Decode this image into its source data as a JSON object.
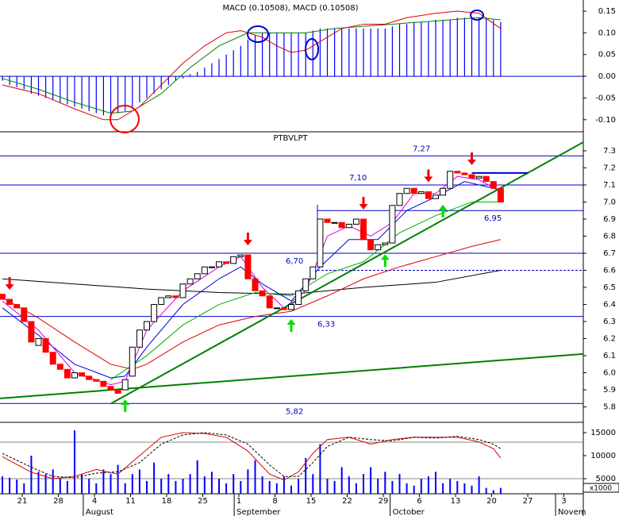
{
  "chart_data": [
    {
      "type": "macd",
      "title": "MACD (0.10508), MACD (0.10508)",
      "xlim": [
        -0.33,
        80.44
      ],
      "ylim": [
        -0.126,
        0.172
      ],
      "yticks": [
        {
          "value": -0.1,
          "label": "-0.10"
        },
        -0.05,
        {
          "value": 0,
          "label": "0.00"
        },
        0.05,
        {
          "value": 0.1,
          "label": "0.10"
        },
        0.15
      ],
      "x": [
        0,
        1,
        2,
        3,
        4,
        5,
        6,
        7,
        8,
        9,
        10,
        11,
        12,
        13,
        14,
        15,
        16,
        17,
        18,
        19,
        20,
        21,
        22,
        23,
        24,
        25,
        26,
        27,
        28,
        29,
        30,
        31,
        32,
        33,
        34,
        35,
        36,
        37,
        38,
        39,
        40,
        41,
        42,
        43,
        44,
        45,
        46,
        47,
        48,
        49,
        50,
        51,
        52,
        53,
        54,
        55,
        56,
        57,
        58,
        59,
        60,
        61,
        62,
        63,
        64,
        65,
        66,
        67,
        68,
        69
      ],
      "histogram_color": "#0000ff",
      "histogram": [
        -0.01,
        -0.02,
        -0.025,
        -0.03,
        -0.04,
        -0.045,
        -0.05,
        -0.055,
        -0.06,
        -0.065,
        -0.07,
        -0.075,
        -0.08,
        -0.085,
        -0.09,
        -0.09,
        -0.085,
        -0.08,
        -0.07,
        -0.06,
        -0.05,
        -0.04,
        -0.03,
        -0.02,
        -0.01,
        -0.005,
        0.005,
        0.01,
        0.02,
        0.03,
        0.04,
        0.05,
        0.06,
        0.07,
        0.085,
        0.095,
        0.1,
        0.1,
        0.1,
        0.1,
        0.1,
        0.1,
        0.1,
        0.105,
        0.11,
        0.11,
        0.11,
        0.11,
        0.11,
        0.11,
        0.11,
        0.11,
        0.11,
        0.11,
        0.115,
        0.12,
        0.12,
        0.125,
        0.125,
        0.125,
        0.13,
        0.13,
        0.13,
        0.135,
        0.135,
        0.135,
        0.135,
        0.135,
        0.13,
        0.125
      ],
      "lines": [
        {
          "color": "#008000",
          "x": [
            0,
            5,
            10,
            15,
            18,
            22,
            26,
            30,
            34,
            38,
            42,
            46,
            50,
            54,
            58,
            62,
            66,
            69
          ],
          "values": [
            -0.005,
            -0.03,
            -0.06,
            -0.085,
            -0.08,
            -0.04,
            0.02,
            0.07,
            0.1,
            0.1,
            0.1,
            0.11,
            0.115,
            0.12,
            0.125,
            0.13,
            0.135,
            0.13
          ]
        },
        {
          "color": "#e00000",
          "x": [
            0,
            5,
            10,
            14,
            16,
            19,
            22,
            25,
            28,
            31,
            33,
            36,
            38,
            40,
            42,
            44,
            47,
            50,
            53,
            56,
            60,
            63,
            66,
            69
          ],
          "values": [
            -0.02,
            -0.04,
            -0.075,
            -0.1,
            -0.1,
            -0.07,
            -0.02,
            0.03,
            0.07,
            0.1,
            0.105,
            0.09,
            0.07,
            0.055,
            0.06,
            0.08,
            0.11,
            0.12,
            0.12,
            0.135,
            0.145,
            0.15,
            0.145,
            0.11
          ]
        }
      ]
    },
    {
      "type": "candlestick",
      "title": "PTBVLPT",
      "xlim": [
        -0.33,
        80.44
      ],
      "ylim": [
        5.719,
        7.402
      ],
      "yticks": [
        5.8,
        5.9,
        {
          "value": 6.0,
          "label": "6.0"
        },
        6.1,
        6.2,
        6.3,
        6.4,
        6.5,
        6.6,
        6.7,
        6.8,
        6.9,
        {
          "value": 7.0,
          "label": "7.0"
        },
        7.1,
        7.2,
        7.3
      ],
      "x": [
        0,
        1,
        2,
        3,
        4,
        5,
        6,
        7,
        8,
        9,
        10,
        11,
        12,
        13,
        14,
        15,
        16,
        17,
        18,
        19,
        20,
        21,
        22,
        23,
        24,
        25,
        26,
        27,
        28,
        29,
        30,
        31,
        32,
        33,
        34,
        35,
        36,
        37,
        38,
        39,
        40,
        41,
        42,
        43,
        44,
        45,
        46,
        47,
        48,
        49,
        50,
        51,
        52,
        53,
        54,
        55,
        56,
        57,
        58,
        59,
        60,
        61,
        62,
        63,
        64,
        65,
        66,
        67,
        68,
        69
      ],
      "open": [
        6.46,
        6.43,
        6.4,
        6.38,
        6.3,
        6.16,
        6.2,
        6.12,
        6.05,
        6.02,
        5.97,
        6.0,
        5.98,
        5.96,
        5.95,
        5.92,
        5.9,
        5.9,
        5.98,
        6.15,
        6.25,
        6.3,
        6.4,
        6.44,
        6.45,
        6.44,
        6.52,
        6.55,
        6.58,
        6.62,
        6.62,
        6.65,
        6.64,
        6.68,
        6.69,
        6.55,
        6.48,
        6.45,
        6.38,
        6.38,
        6.37,
        6.4,
        6.48,
        6.55,
        6.62,
        6.9,
        6.88,
        6.88,
        6.85,
        6.87,
        6.9,
        6.78,
        6.72,
        6.75,
        6.76,
        6.98,
        7.05,
        7.08,
        7.05,
        7.06,
        7.02,
        7.04,
        7.08,
        7.18,
        7.17,
        7.16,
        7.14,
        7.15,
        7.12,
        7.08
      ],
      "close": [
        6.43,
        6.4,
        6.38,
        6.3,
        6.18,
        6.2,
        6.12,
        6.05,
        6.02,
        5.97,
        6.0,
        5.98,
        5.96,
        5.95,
        5.92,
        5.9,
        5.88,
        5.96,
        6.15,
        6.25,
        6.3,
        6.4,
        6.44,
        6.45,
        6.44,
        6.52,
        6.55,
        6.58,
        6.62,
        6.62,
        6.65,
        6.64,
        6.68,
        6.69,
        6.55,
        6.48,
        6.45,
        6.38,
        6.38,
        6.37,
        6.4,
        6.48,
        6.55,
        6.62,
        6.9,
        6.88,
        6.88,
        6.85,
        6.87,
        6.9,
        6.78,
        6.72,
        6.75,
        6.76,
        6.98,
        7.05,
        7.08,
        7.05,
        7.06,
        7.02,
        7.04,
        7.08,
        7.18,
        7.17,
        7.16,
        7.14,
        7.15,
        7.12,
        7.08,
        7.0
      ],
      "up_color": "#ffffff",
      "down_color": "#ff0000",
      "lines": [
        {
          "color": "#000000",
          "x": [
            0,
            10,
            20,
            30,
            40,
            50,
            60,
            69
          ],
          "values": [
            6.55,
            6.52,
            6.49,
            6.47,
            6.46,
            6.5,
            6.53,
            6.6
          ]
        },
        {
          "color": "#dd0000",
          "x": [
            0,
            5,
            10,
            15,
            18,
            20,
            25,
            30,
            35,
            40,
            45,
            50,
            55,
            60,
            65,
            69
          ],
          "values": [
            6.44,
            6.32,
            6.18,
            6.05,
            6.02,
            6.05,
            6.18,
            6.28,
            6.33,
            6.36,
            6.45,
            6.55,
            6.62,
            6.68,
            6.74,
            6.78
          ]
        },
        {
          "color": "#00b000",
          "x": [
            15,
            20,
            25,
            30,
            35,
            40,
            45,
            50,
            55,
            60,
            65,
            69
          ],
          "values": [
            5.96,
            6.1,
            6.28,
            6.4,
            6.47,
            6.45,
            6.58,
            6.65,
            6.82,
            6.92,
            7.0,
            7.0
          ]
        },
        {
          "color": "#0000dd",
          "x": [
            0,
            5,
            10,
            15,
            17,
            20,
            25,
            30,
            33,
            36,
            40,
            44,
            48,
            52,
            56,
            60,
            64,
            69
          ],
          "values": [
            6.38,
            6.22,
            6.05,
            5.97,
            5.98,
            6.15,
            6.4,
            6.55,
            6.62,
            6.52,
            6.42,
            6.62,
            6.78,
            6.78,
            6.95,
            7.03,
            7.12,
            7.07
          ]
        },
        {
          "color": "#dd00dd",
          "x": [
            0,
            5,
            10,
            15,
            17,
            20,
            25,
            30,
            33,
            36,
            39,
            42,
            45,
            48,
            51,
            54,
            57,
            60,
            63,
            66,
            69
          ],
          "values": [
            6.42,
            6.25,
            6.0,
            5.93,
            5.95,
            6.25,
            6.48,
            6.62,
            6.68,
            6.5,
            6.38,
            6.48,
            6.8,
            6.86,
            6.8,
            6.88,
            7.05,
            7.05,
            7.15,
            7.13,
            7.06
          ]
        }
      ],
      "reference_color": "#0000cc",
      "reference_lines": [
        {
          "value": 7.27,
          "label": "7,27"
        },
        {
          "value": 7.1,
          "label": "7,10"
        },
        {
          "value": 6.95,
          "label": "6,95"
        },
        {
          "value": 6.7,
          "label": "6,70"
        },
        {
          "value": 6.33,
          "label": "6,33"
        },
        {
          "value": 5.82,
          "label": "5,82"
        }
      ],
      "dashed_line": 6.6,
      "trend_lines": [
        {
          "color": "#008000",
          "x": [
            15.05,
            80.44
          ],
          "values": [
            5.82,
            7.35
          ]
        },
        {
          "color": "#008000",
          "x": [
            -0.33,
            80.44
          ],
          "values": [
            5.85,
            6.11
          ]
        },
        {
          "color": "#0000cc",
          "x": [
            65,
            72.8
          ],
          "values": [
            7.17,
            7.17
          ]
        }
      ],
      "sell_signals": [
        1,
        34,
        50,
        59,
        65
      ],
      "buy_signals": [
        17,
        40,
        53,
        61
      ]
    },
    {
      "type": "bar",
      "unit_label": "x1000",
      "xlim": [
        -0.33,
        80.44
      ],
      "ylim": [
        1724,
        16724
      ],
      "yticks": [
        5000,
        10000,
        15000
      ],
      "x": [
        0,
        1,
        2,
        3,
        4,
        5,
        6,
        7,
        8,
        9,
        10,
        11,
        12,
        13,
        14,
        15,
        16,
        17,
        18,
        19,
        20,
        21,
        22,
        23,
        24,
        25,
        26,
        27,
        28,
        29,
        30,
        31,
        32,
        33,
        34,
        35,
        36,
        37,
        38,
        39,
        40,
        41,
        42,
        43,
        44,
        45,
        46,
        47,
        48,
        49,
        50,
        51,
        52,
        53,
        54,
        55,
        56,
        57,
        58,
        59,
        60,
        61,
        62,
        63,
        64,
        65,
        66,
        67,
        68,
        69
      ],
      "color": "#0000ff",
      "values": [
        5500,
        5200,
        4800,
        4000,
        10000,
        6500,
        6000,
        7000,
        5000,
        4500,
        15500,
        6000,
        5000,
        4000,
        7000,
        6000,
        8000,
        4000,
        6000,
        7000,
        4500,
        8500,
        5000,
        6000,
        4500,
        5000,
        6000,
        9000,
        5500,
        6500,
        5000,
        4000,
        6000,
        4500,
        7000,
        9000,
        5500,
        4500,
        4000,
        5500,
        3500,
        5000,
        9500,
        6000,
        12500,
        5000,
        4500,
        7500,
        5500,
        4000,
        6000,
        7500,
        5000,
        6500,
        4500,
        6000,
        4000,
        3500,
        5000,
        5500,
        6500,
        4000,
        5000,
        4500,
        4000,
        3500,
        5500,
        3000,
        2500,
        3000
      ],
      "lines": [
        {
          "color": "#dd0000",
          "x": [
            0,
            4,
            7,
            10,
            13,
            16,
            19,
            22,
            25,
            28,
            31,
            34,
            37,
            39,
            41,
            43,
            45,
            48,
            51,
            54,
            57,
            60,
            63,
            66,
            68,
            69
          ],
          "values": [
            9800,
            6400,
            5000,
            5500,
            7000,
            6000,
            10000,
            14000,
            15000,
            14800,
            14000,
            11000,
            6000,
            4700,
            6500,
            10500,
            13500,
            14000,
            12500,
            13500,
            14000,
            14000,
            14000,
            13000,
            11500,
            9500
          ]
        },
        {
          "color": "#000000",
          "dashed": true,
          "x": [
            0,
            4,
            7,
            10,
            13,
            16,
            19,
            22,
            25,
            28,
            31,
            34,
            37,
            39,
            41,
            43,
            45,
            48,
            51,
            54,
            57,
            60,
            63,
            66,
            68,
            69
          ],
          "values": [
            10500,
            7500,
            5500,
            5200,
            6200,
            6500,
            8500,
            12500,
            14500,
            15000,
            14500,
            12500,
            8000,
            5500,
            5500,
            8500,
            12000,
            14000,
            13500,
            13200,
            14000,
            13800,
            14200,
            13500,
            12500,
            11500
          ]
        }
      ],
      "xticks": [
        {
          "value": 2.75,
          "label": "21"
        },
        {
          "value": 7.75,
          "label": "28"
        },
        {
          "value": 12.75,
          "label": "4"
        },
        {
          "value": 17.75,
          "label": "11"
        },
        {
          "value": 22.75,
          "label": "18"
        },
        {
          "value": 27.75,
          "label": "25"
        },
        {
          "value": 32.75,
          "label": "1"
        },
        {
          "value": 37.75,
          "label": "8"
        },
        {
          "value": 42.75,
          "label": "15"
        },
        {
          "value": 47.75,
          "label": "22"
        },
        {
          "value": 52.75,
          "label": "29"
        },
        {
          "value": 57.75,
          "label": "6"
        },
        {
          "value": 62.75,
          "label": "13"
        },
        {
          "value": 67.75,
          "label": "20"
        },
        {
          "value": 72.75,
          "label": "27"
        },
        {
          "value": 77.75,
          "label": "3"
        }
      ],
      "month_labels": [
        {
          "value": 11.2,
          "label": "August"
        },
        {
          "value": 32.1,
          "label": "September"
        },
        {
          "value": 53.7,
          "label": "October"
        },
        {
          "value": 76.6,
          "label": "Novem"
        }
      ]
    }
  ]
}
